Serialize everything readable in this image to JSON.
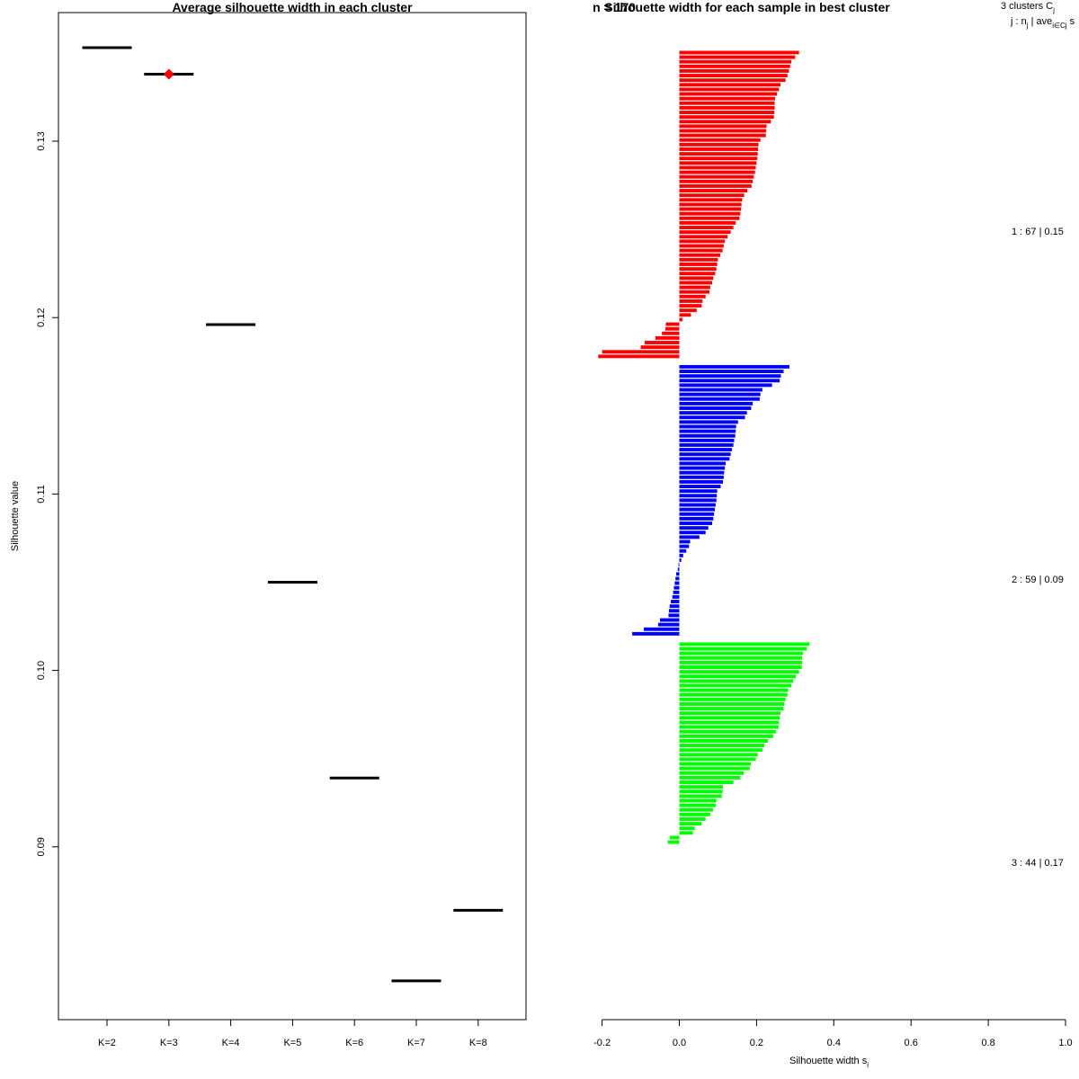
{
  "chart_data": [
    {
      "type": "line",
      "title": "Average silhouette width in each cluster",
      "xlabel": "",
      "ylabel": "Silhouette value",
      "categories": [
        "K=2",
        "K=3",
        "K=4",
        "K=5",
        "K=6",
        "K=7",
        "K=8"
      ],
      "values": [
        0.1353,
        0.1338,
        0.1196,
        0.105,
        0.0939,
        0.0824,
        0.0864
      ],
      "best": {
        "category": "K=3",
        "value": 0.1338,
        "color": "#ff0000"
      },
      "y_ticks": [
        "0.09",
        "0.10",
        "0.11",
        "0.12",
        "0.13"
      ],
      "ylim": [
        0.0805,
        0.1375
      ],
      "line_color": "#000000"
    },
    {
      "type": "bar",
      "orientation": "horizontal",
      "title": "Silhouette width for each sample in best cluster",
      "title_overlap_text": "n = 170",
      "xlabel": "Silhouette width s",
      "xlabel_subscript": "i",
      "x_ticks": [
        "-0.2",
        "0.0",
        "0.2",
        "0.4",
        "0.6",
        "0.8",
        "1.0"
      ],
      "xlim": [
        -0.2,
        1.0
      ],
      "legend_header": {
        "line1": "3  clusters  C",
        "line1_sub": "j",
        "line2": "j :  n",
        "line2_sub1": "j",
        "line2_mid": " | ave",
        "line2_sub2": "i∈Cj",
        "line2_end": "  s"
      },
      "series": [
        {
          "name": "cluster 1",
          "label": "1 :   67  |  0.15",
          "color": "#ff0000",
          "values": [
            0.31,
            0.3,
            0.29,
            0.287,
            0.284,
            0.28,
            0.275,
            0.262,
            0.258,
            0.253,
            0.248,
            0.247,
            0.247,
            0.246,
            0.245,
            0.237,
            0.226,
            0.225,
            0.224,
            0.21,
            0.205,
            0.204,
            0.203,
            0.202,
            0.2,
            0.198,
            0.196,
            0.193,
            0.19,
            0.187,
            0.176,
            0.168,
            0.163,
            0.161,
            0.16,
            0.158,
            0.156,
            0.146,
            0.14,
            0.133,
            0.125,
            0.118,
            0.115,
            0.112,
            0.106,
            0.1,
            0.098,
            0.096,
            0.093,
            0.088,
            0.085,
            0.08,
            0.078,
            0.068,
            0.06,
            0.058,
            0.045,
            0.03,
            0.008,
            -0.035,
            -0.036,
            -0.045,
            -0.062,
            -0.09,
            -0.1,
            -0.2,
            -0.21
          ]
        },
        {
          "name": "cluster 2",
          "label": "2 :   59  |  0.09",
          "color": "#0000ff",
          "values": [
            0.285,
            0.27,
            0.263,
            0.26,
            0.24,
            0.215,
            0.21,
            0.208,
            0.19,
            0.186,
            0.175,
            0.17,
            0.152,
            0.147,
            0.146,
            0.145,
            0.142,
            0.14,
            0.136,
            0.133,
            0.13,
            0.12,
            0.118,
            0.116,
            0.115,
            0.113,
            0.107,
            0.098,
            0.097,
            0.096,
            0.094,
            0.092,
            0.09,
            0.088,
            0.085,
            0.075,
            0.068,
            0.052,
            0.028,
            0.025,
            0.018,
            0.01,
            0.005,
            -0.002,
            -0.004,
            -0.008,
            -0.01,
            -0.012,
            -0.014,
            -0.016,
            -0.018,
            -0.022,
            -0.025,
            -0.027,
            -0.028,
            -0.05,
            -0.055,
            -0.092,
            -0.122
          ]
        },
        {
          "name": "cluster 3",
          "label": "3 :   44  |  0.17",
          "color": "#00ff00",
          "values": [
            0.337,
            0.33,
            0.32,
            0.318,
            0.318,
            0.317,
            0.31,
            0.302,
            0.295,
            0.29,
            0.282,
            0.28,
            0.275,
            0.272,
            0.27,
            0.262,
            0.26,
            0.258,
            0.257,
            0.25,
            0.243,
            0.23,
            0.22,
            0.215,
            0.203,
            0.198,
            0.185,
            0.182,
            0.167,
            0.158,
            0.14,
            0.113,
            0.112,
            0.11,
            0.096,
            0.094,
            0.087,
            0.08,
            0.068,
            0.057,
            0.04,
            0.035,
            -0.025,
            -0.03
          ]
        }
      ]
    }
  ]
}
